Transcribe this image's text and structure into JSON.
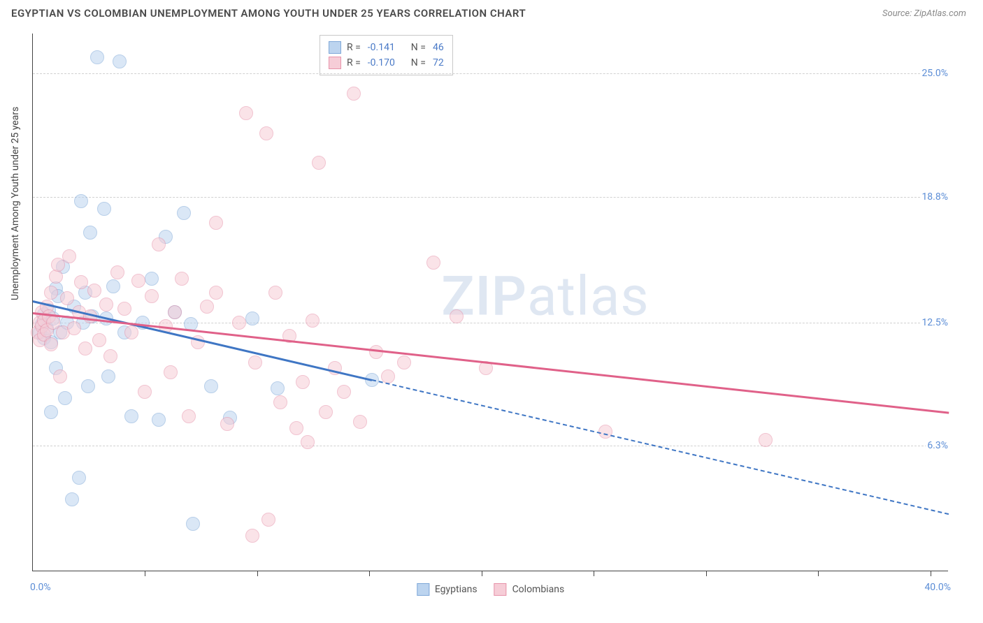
{
  "header": {
    "title": "EGYPTIAN VS COLOMBIAN UNEMPLOYMENT AMONG YOUTH UNDER 25 YEARS CORRELATION CHART",
    "source": "Source: ZipAtlas.com"
  },
  "chart": {
    "type": "scatter",
    "background_color": "#ffffff",
    "grid_color": "#d0d0d0",
    "axis_color": "#444444",
    "xlim": [
      0,
      40
    ],
    "ylim": [
      0,
      27
    ],
    "x_ticks": [
      4.9,
      9.8,
      14.7,
      19.6,
      24.5,
      29.4,
      34.3,
      39.2
    ],
    "y_gridlines": [
      6.3,
      12.5,
      18.8,
      25.0
    ],
    "y_labels_right": [
      "6.3%",
      "12.5%",
      "18.8%",
      "25.0%"
    ],
    "x_min_label": "0.0%",
    "x_max_label": "40.0%",
    "yaxis_title": "Unemployment Among Youth under 25 years",
    "label_color": "#5b8dd6",
    "label_fontsize": 14,
    "title_fontsize": 15,
    "marker_radius": 10,
    "marker_opacity": 0.55,
    "series": [
      {
        "name": "Egyptians",
        "color_fill": "#bcd4ef",
        "color_stroke": "#7fa8d8",
        "R": "-0.141",
        "N": "46",
        "trend": {
          "x1": 0,
          "y1": 13.6,
          "x2": 40,
          "y2": 2.9,
          "solid_until_x": 14.8,
          "color": "#3f76c4"
        },
        "points": [
          [
            0.3,
            12.0
          ],
          [
            0.4,
            12.4
          ],
          [
            0.5,
            11.7
          ],
          [
            0.5,
            12.9
          ],
          [
            0.6,
            12.2
          ],
          [
            0.7,
            13.1
          ],
          [
            0.8,
            11.5
          ],
          [
            0.8,
            8.0
          ],
          [
            0.9,
            12.7
          ],
          [
            1.0,
            14.2
          ],
          [
            1.0,
            10.2
          ],
          [
            1.1,
            13.8
          ],
          [
            1.2,
            12.0
          ],
          [
            1.3,
            15.3
          ],
          [
            1.4,
            8.7
          ],
          [
            1.5,
            12.5
          ],
          [
            1.7,
            3.6
          ],
          [
            1.8,
            13.3
          ],
          [
            2.0,
            4.7
          ],
          [
            2.1,
            18.6
          ],
          [
            2.2,
            12.5
          ],
          [
            2.3,
            14.0
          ],
          [
            2.4,
            9.3
          ],
          [
            2.5,
            17.0
          ],
          [
            2.6,
            12.8
          ],
          [
            2.8,
            25.8
          ],
          [
            3.1,
            18.2
          ],
          [
            3.2,
            12.7
          ],
          [
            3.3,
            9.8
          ],
          [
            3.5,
            14.3
          ],
          [
            3.8,
            25.6
          ],
          [
            4.0,
            12.0
          ],
          [
            4.3,
            7.8
          ],
          [
            4.8,
            12.5
          ],
          [
            5.2,
            14.7
          ],
          [
            5.5,
            7.6
          ],
          [
            5.8,
            16.8
          ],
          [
            6.6,
            18.0
          ],
          [
            6.9,
            12.4
          ],
          [
            7.0,
            2.4
          ],
          [
            7.8,
            9.3
          ],
          [
            8.6,
            7.7
          ],
          [
            9.6,
            12.7
          ],
          [
            10.7,
            9.2
          ],
          [
            14.8,
            9.6
          ],
          [
            6.2,
            13.0
          ]
        ]
      },
      {
        "name": "Colombians",
        "color_fill": "#f6cdd7",
        "color_stroke": "#e793aa",
        "R": "-0.170",
        "N": "72",
        "trend": {
          "x1": 0,
          "y1": 13.0,
          "x2": 40,
          "y2": 8.0,
          "solid_until_x": 40,
          "color": "#e06189"
        },
        "points": [
          [
            0.2,
            12.0
          ],
          [
            0.3,
            11.6
          ],
          [
            0.3,
            12.5
          ],
          [
            0.4,
            12.3
          ],
          [
            0.4,
            13.0
          ],
          [
            0.5,
            11.9
          ],
          [
            0.5,
            12.6
          ],
          [
            0.6,
            12.1
          ],
          [
            0.6,
            13.3
          ],
          [
            0.7,
            12.8
          ],
          [
            0.8,
            11.4
          ],
          [
            0.8,
            14.0
          ],
          [
            0.9,
            12.5
          ],
          [
            1.0,
            14.8
          ],
          [
            1.1,
            15.4
          ],
          [
            1.2,
            9.8
          ],
          [
            1.3,
            12.0
          ],
          [
            1.5,
            13.7
          ],
          [
            1.6,
            15.8
          ],
          [
            1.8,
            12.2
          ],
          [
            2.0,
            13.0
          ],
          [
            2.1,
            14.5
          ],
          [
            2.3,
            11.2
          ],
          [
            2.5,
            12.8
          ],
          [
            2.7,
            14.1
          ],
          [
            2.9,
            11.6
          ],
          [
            3.2,
            13.4
          ],
          [
            3.4,
            10.8
          ],
          [
            3.7,
            15.0
          ],
          [
            4.0,
            13.2
          ],
          [
            4.3,
            12.0
          ],
          [
            4.6,
            14.6
          ],
          [
            4.9,
            9.0
          ],
          [
            5.2,
            13.8
          ],
          [
            5.5,
            16.4
          ],
          [
            5.8,
            12.3
          ],
          [
            6.2,
            13.0
          ],
          [
            6.5,
            14.7
          ],
          [
            6.8,
            7.8
          ],
          [
            7.2,
            11.5
          ],
          [
            7.6,
            13.3
          ],
          [
            8.0,
            14.0
          ],
          [
            8.0,
            17.5
          ],
          [
            8.5,
            7.4
          ],
          [
            9.0,
            12.5
          ],
          [
            9.3,
            23.0
          ],
          [
            9.7,
            10.5
          ],
          [
            10.2,
            22.0
          ],
          [
            9.6,
            1.8
          ],
          [
            10.3,
            2.6
          ],
          [
            10.6,
            14.0
          ],
          [
            10.8,
            8.5
          ],
          [
            11.2,
            11.8
          ],
          [
            11.5,
            7.2
          ],
          [
            11.8,
            9.5
          ],
          [
            12.0,
            6.5
          ],
          [
            12.2,
            12.6
          ],
          [
            12.5,
            20.5
          ],
          [
            12.8,
            8.0
          ],
          [
            13.2,
            10.2
          ],
          [
            13.6,
            9.0
          ],
          [
            14.0,
            24.0
          ],
          [
            14.3,
            7.5
          ],
          [
            15.0,
            11.0
          ],
          [
            15.5,
            9.8
          ],
          [
            16.2,
            10.5
          ],
          [
            17.5,
            15.5
          ],
          [
            18.5,
            12.8
          ],
          [
            19.8,
            10.2
          ],
          [
            25.0,
            7.0
          ],
          [
            32.0,
            6.6
          ],
          [
            6.0,
            10.0
          ]
        ]
      }
    ],
    "legend_top": {
      "rows": [
        {
          "swatch_fill": "#bcd4ef",
          "swatch_stroke": "#7fa8d8",
          "r_label": "R =",
          "r_val": "-0.141",
          "n_label": "N =",
          "n_val": "46"
        },
        {
          "swatch_fill": "#f6cdd7",
          "swatch_stroke": "#e793aa",
          "r_label": "R =",
          "r_val": "-0.170",
          "n_label": "N =",
          "n_val": "72"
        }
      ]
    },
    "legend_bottom": [
      {
        "swatch_fill": "#bcd4ef",
        "swatch_stroke": "#7fa8d8",
        "label": "Egyptians"
      },
      {
        "swatch_fill": "#f6cdd7",
        "swatch_stroke": "#e793aa",
        "label": "Colombians"
      }
    ],
    "watermark": {
      "bold": "ZIP",
      "rest": "atlas",
      "color": "#dfe7f2"
    }
  }
}
